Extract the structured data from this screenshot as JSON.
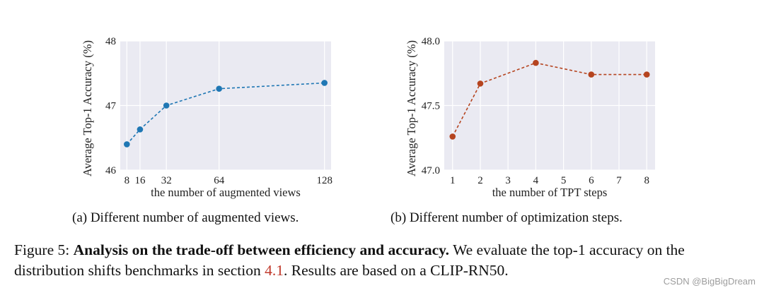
{
  "chart_data": [
    {
      "type": "line",
      "xlabel": "the number of augmented views",
      "ylabel": "Average Top-1 Accuracy (%)",
      "x": [
        8,
        16,
        32,
        64,
        128
      ],
      "x_tick_labels": [
        "8",
        "16",
        "32",
        "64",
        "128"
      ],
      "y_ticks": [
        46,
        47,
        48
      ],
      "y_tick_labels": [
        "46",
        "47",
        "48"
      ],
      "ylim": [
        46,
        48
      ],
      "xlim": [
        4,
        132
      ],
      "grid": true,
      "series": [
        {
          "values": [
            46.4,
            46.63,
            47.0,
            47.26,
            47.35
          ],
          "color": "#1f77b4",
          "linestyle": "dashed"
        }
      ]
    },
    {
      "type": "line",
      "xlabel": "the number of TPT steps",
      "ylabel": "Average Top-1 Accuracy (%)",
      "x": [
        1,
        2,
        4,
        6,
        8
      ],
      "x_ticks": [
        1,
        2,
        3,
        4,
        5,
        6,
        7,
        8
      ],
      "x_tick_labels": [
        "1",
        "2",
        "3",
        "4",
        "5",
        "6",
        "7",
        "8"
      ],
      "y_ticks": [
        47.0,
        47.5,
        48.0
      ],
      "y_tick_labels": [
        "47.0",
        "47.5",
        "48.0"
      ],
      "ylim": [
        47.0,
        48.0
      ],
      "xlim": [
        0.7,
        8.3
      ],
      "grid": true,
      "series": [
        {
          "values": [
            47.26,
            47.67,
            47.83,
            47.74,
            47.74
          ],
          "color": "#b5441f",
          "linestyle": "dashed"
        }
      ]
    }
  ],
  "subcaptions": {
    "a": "(a) Different number of augmented views.",
    "b": "(b) Different number of optimization steps."
  },
  "caption": {
    "label": "Figure 5:",
    "bold": "Analysis on the trade-off between efficiency and accuracy.",
    "text_1": "We evaluate the top-1 accuracy on the distribution shifts benchmarks in section",
    "ref": "4.1",
    "text_2": ". Results are based on a CLIP-RN50."
  },
  "watermark": "CSDN @BigBigDream"
}
